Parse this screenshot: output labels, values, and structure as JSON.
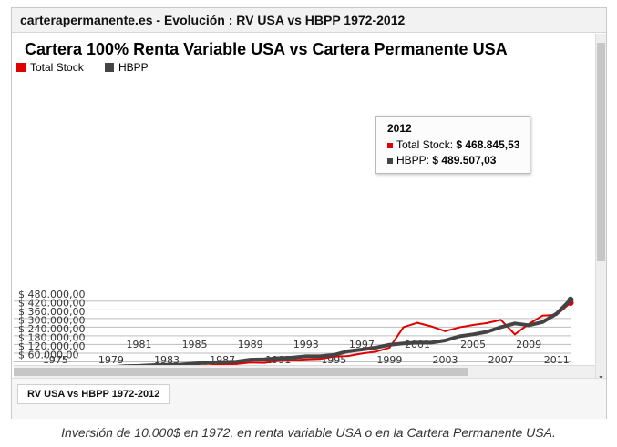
{
  "window": {
    "title": "carterapermanente.es - Evolución : RV USA vs HBPP 1972-2012",
    "sheet_tab": "RV USA vs HBPP 1972-2012"
  },
  "caption": "Inversión de 10.000$ en 1972, en renta variable USA o en la Cartera Permanente USA.",
  "colors": {
    "total_stock": "#e00000",
    "hbpp": "#444444"
  },
  "tooltip": {
    "year": "2012",
    "rows": [
      {
        "label": "Total Stock: ",
        "value": "$ 468.845,53",
        "color": "#e00000"
      },
      {
        "label": "HBPP: ",
        "value": "$ 489.507,03",
        "color": "#444444"
      }
    ]
  },
  "chart_data": {
    "type": "line",
    "title": "Cartera 100% Renta Variable USA vs Cartera Permanente USA",
    "ylim": [
      0,
      480000
    ],
    "yticks": [
      60000,
      120000,
      180000,
      240000,
      300000,
      360000,
      420000,
      480000
    ],
    "ytick_labels": [
      "$ 60.000,00",
      "$ 120.000,00",
      "$ 180.000,00",
      "$ 240.000,00",
      "$ 300.000,00",
      "$ 360.000,00",
      "$ 420.000,00",
      "$ 480.000,00"
    ],
    "x": [
      1972,
      1973,
      1974,
      1975,
      1976,
      1977,
      1978,
      1979,
      1980,
      1981,
      1982,
      1983,
      1984,
      1985,
      1986,
      1987,
      1988,
      1989,
      1990,
      1991,
      1992,
      1993,
      1994,
      1995,
      1996,
      1997,
      1998,
      1999,
      2000,
      2001,
      2002,
      2003,
      2004,
      2005,
      2006,
      2007,
      2008,
      2009,
      2010,
      2011,
      2012
    ],
    "x_ticks_upper": [
      1981,
      1985,
      1989,
      1993,
      1997,
      2001,
      2005,
      2009
    ],
    "x_ticks_lower": [
      1975,
      1979,
      1983,
      1987,
      1991,
      1995,
      1999,
      2003,
      2007,
      2011
    ],
    "legend": [
      {
        "name": "Total Stock",
        "color": "#e00000"
      },
      {
        "name": "HBPP",
        "color": "#444444"
      }
    ],
    "series": [
      {
        "name": "Total Stock",
        "color": "#e00000",
        "values": [
          8500,
          8000,
          6500,
          7500,
          9500,
          10500,
          11000,
          13500,
          15000,
          15000,
          19000,
          24000,
          27000,
          30000,
          35000,
          43000,
          45000,
          55000,
          53000,
          67000,
          71000,
          77000,
          80000,
          96000,
          100000,
          117000,
          130000,
          158000,
          300000,
          330000,
          305000,
          272000,
          298000,
          315000,
          328000,
          350000,
          250000,
          322000,
          380000,
          385000,
          468845.53
        ]
      },
      {
        "name": "HBPP",
        "color": "#444444",
        "values": [
          10000,
          11000,
          13000,
          15500,
          16000,
          17000,
          19000,
          22500,
          30000,
          32000,
          37000,
          40000,
          41000,
          48000,
          56000,
          58000,
          62000,
          75000,
          77000,
          85000,
          89000,
          98000,
          98000,
          108000,
          133000,
          145000,
          158000,
          178000,
          188000,
          193000,
          193000,
          208000,
          236000,
          250000,
          268000,
          300000,
          326000,
          313000,
          335000,
          394000,
          489507.03
        ]
      }
    ]
  }
}
